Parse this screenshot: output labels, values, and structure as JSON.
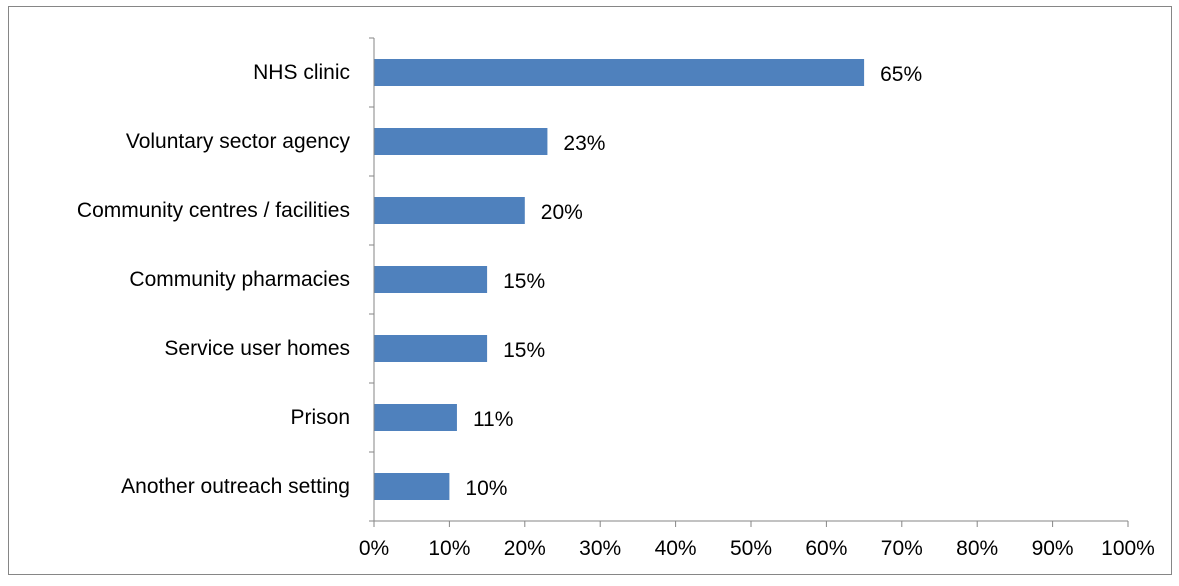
{
  "colors": {
    "bar": "#4f81bd",
    "axis": "#868686",
    "border": "#868686",
    "text": "#000000",
    "background": "#ffffff"
  },
  "chart_data": {
    "type": "bar",
    "orientation": "horizontal",
    "title": "",
    "xlabel": "",
    "ylabel": "",
    "categories": [
      "NHS clinic",
      "Voluntary sector agency",
      "Community centres / facilities",
      "Community pharmacies",
      "Service user homes",
      "Prison",
      "Another outreach setting"
    ],
    "values": [
      65,
      23,
      20,
      15,
      15,
      11,
      10
    ],
    "data_labels": [
      "65%",
      "23%",
      "20%",
      "15%",
      "15%",
      "11%",
      "10%"
    ],
    "xlim": [
      0,
      100
    ],
    "x_ticks": [
      0,
      10,
      20,
      30,
      40,
      50,
      60,
      70,
      80,
      90,
      100
    ],
    "x_tick_labels": [
      "0%",
      "10%",
      "20%",
      "30%",
      "40%",
      "50%",
      "60%",
      "70%",
      "80%",
      "90%",
      "100%"
    ],
    "grid": false,
    "legend": "none"
  }
}
